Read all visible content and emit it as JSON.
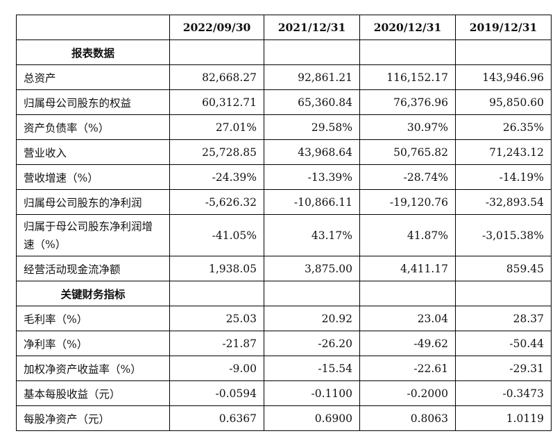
{
  "columns": [
    "2022/09/30",
    "2021/12/31",
    "2020/12/31",
    "2019/12/31"
  ],
  "sections": [
    {
      "title": "报表数据",
      "rows": [
        {
          "label": "总资产",
          "values": [
            "82,668.27",
            "92,861.21",
            "116,152.17",
            "143,946.96"
          ]
        },
        {
          "label": "归属母公司股东的权益",
          "values": [
            "60,312.71",
            "65,360.84",
            "76,376.96",
            "95,850.60"
          ]
        },
        {
          "label": "资产负债率（%）",
          "values": [
            "27.01%",
            "29.58%",
            "30.97%",
            "26.35%"
          ]
        },
        {
          "label": "营业收入",
          "values": [
            "25,728.85",
            "43,968.64",
            "50,765.82",
            "71,243.12"
          ]
        },
        {
          "label": "营收增速（%）",
          "values": [
            "-24.39%",
            "-13.39%",
            "-28.74%",
            "-14.19%"
          ]
        },
        {
          "label": "归属母公司股东的净利润",
          "values": [
            "-5,626.32",
            "-10,866.11",
            "-19,120.76",
            "-32,893.54"
          ]
        },
        {
          "label": "归属于母公司股东净利润增速（%）",
          "values": [
            "-41.05%",
            "43.17%",
            "41.87%",
            "-3,015.38%"
          ]
        },
        {
          "label": "经营活动现金流净额",
          "values": [
            "1,938.05",
            "3,875.00",
            "4,411.17",
            "859.45"
          ]
        }
      ]
    },
    {
      "title": "关键财务指标",
      "rows": [
        {
          "label": "毛利率（%）",
          "values": [
            "25.03",
            "20.92",
            "23.04",
            "28.37"
          ]
        },
        {
          "label": "净利率（%）",
          "values": [
            "-21.87",
            "-26.20",
            "-49.62",
            "-50.44"
          ]
        },
        {
          "label": "加权净资产收益率（%）",
          "values": [
            "-9.00",
            "-15.54",
            "-22.61",
            "-29.31"
          ]
        },
        {
          "label": "基本每股收益（元）",
          "values": [
            "-0.0594",
            "-0.1100",
            "-0.2000",
            "-0.3473"
          ]
        },
        {
          "label": "每股净资产（元）",
          "values": [
            "0.6367",
            "0.6900",
            "0.8063",
            "1.0119"
          ]
        }
      ]
    }
  ]
}
